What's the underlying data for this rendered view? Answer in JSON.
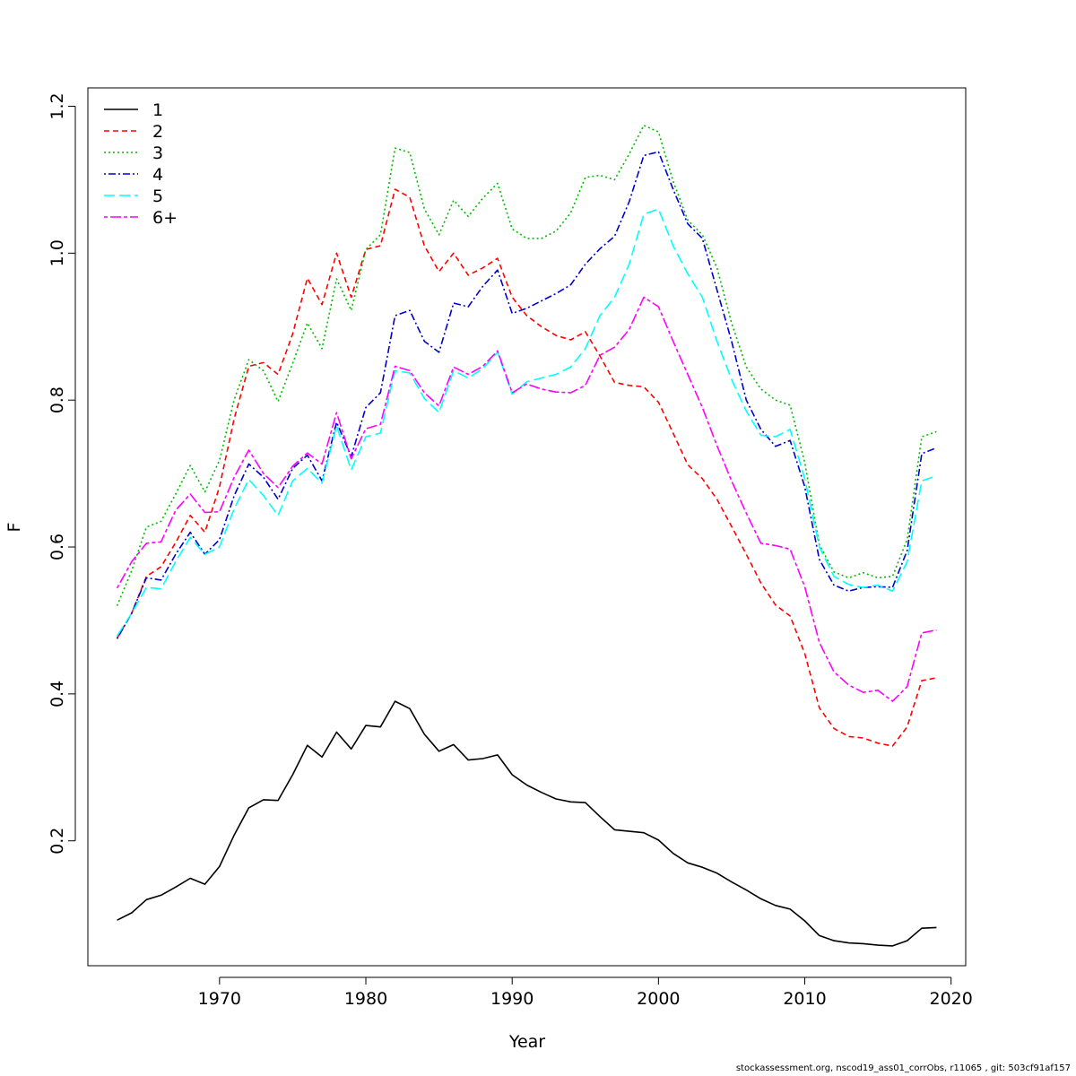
{
  "chart_data": {
    "type": "line",
    "xlabel": "Year",
    "ylabel": "F",
    "xlim": [
      1961,
      2021
    ],
    "ylim": [
      0.03,
      1.225
    ],
    "xticks": [
      1970,
      1980,
      1990,
      2000,
      2010,
      2020
    ],
    "yticks": [
      0.2,
      0.4,
      0.6,
      0.8,
      1.0,
      1.2
    ],
    "xtick_labels": [
      "1970",
      "1980",
      "1990",
      "2000",
      "2010",
      "2020"
    ],
    "ytick_labels": [
      "0.2",
      "0.4",
      "0.6",
      "0.8",
      "1.0",
      "1.2"
    ],
    "grid": false,
    "legend_position": "top-left",
    "x": [
      1963,
      1964,
      1965,
      1966,
      1967,
      1968,
      1969,
      1970,
      1971,
      1972,
      1973,
      1974,
      1975,
      1976,
      1977,
      1978,
      1979,
      1980,
      1981,
      1982,
      1983,
      1984,
      1985,
      1986,
      1987,
      1988,
      1989,
      1990,
      1991,
      1992,
      1993,
      1994,
      1995,
      1996,
      1997,
      1998,
      1999,
      2000,
      2001,
      2002,
      2003,
      2004,
      2005,
      2006,
      2007,
      2008,
      2009,
      2010,
      2011,
      2012,
      2013,
      2014,
      2015,
      2016,
      2017,
      2018,
      2019
    ],
    "series": [
      {
        "name": "1",
        "color": "#000000",
        "dash": "solid",
        "values": [
          0.092,
          0.102,
          0.12,
          0.126,
          0.137,
          0.149,
          0.141,
          0.165,
          0.208,
          0.245,
          0.256,
          0.255,
          0.29,
          0.33,
          0.314,
          0.348,
          0.325,
          0.357,
          0.355,
          0.39,
          0.38,
          0.345,
          0.322,
          0.331,
          0.31,
          0.312,
          0.317,
          0.29,
          0.276,
          0.266,
          0.257,
          0.253,
          0.252,
          0.233,
          0.215,
          0.213,
          0.211,
          0.201,
          0.183,
          0.17,
          0.164,
          0.156,
          0.144,
          0.133,
          0.121,
          0.112,
          0.107,
          0.091,
          0.071,
          0.064,
          0.061,
          0.06,
          0.058,
          0.057,
          0.064,
          0.081,
          0.082
        ]
      },
      {
        "name": "2",
        "color": "#ff0000",
        "dash": "dashed",
        "values": [
          0.476,
          0.51,
          0.56,
          0.573,
          0.606,
          0.643,
          0.62,
          0.682,
          0.775,
          0.846,
          0.851,
          0.835,
          0.89,
          0.966,
          0.93,
          1.0,
          0.94,
          1.005,
          1.01,
          1.087,
          1.076,
          1.01,
          0.975,
          1.0,
          0.97,
          0.98,
          0.993,
          0.94,
          0.915,
          0.9,
          0.888,
          0.882,
          0.893,
          0.86,
          0.824,
          0.82,
          0.818,
          0.797,
          0.755,
          0.712,
          0.693,
          0.665,
          0.628,
          0.59,
          0.551,
          0.521,
          0.506,
          0.455,
          0.381,
          0.353,
          0.342,
          0.34,
          0.333,
          0.329,
          0.355,
          0.418,
          0.422
        ]
      },
      {
        "name": "3",
        "color": "#00bb00",
        "dash": "dotted",
        "values": [
          0.52,
          0.568,
          0.627,
          0.635,
          0.672,
          0.711,
          0.675,
          0.718,
          0.801,
          0.855,
          0.84,
          0.798,
          0.85,
          0.905,
          0.87,
          0.965,
          0.922,
          1.005,
          1.025,
          1.143,
          1.137,
          1.06,
          1.025,
          1.072,
          1.05,
          1.075,
          1.095,
          1.033,
          1.02,
          1.02,
          1.03,
          1.055,
          1.103,
          1.106,
          1.1,
          1.135,
          1.174,
          1.165,
          1.098,
          1.045,
          1.025,
          0.98,
          0.905,
          0.845,
          0.815,
          0.8,
          0.793,
          0.715,
          0.603,
          0.566,
          0.558,
          0.565,
          0.558,
          0.56,
          0.61,
          0.75,
          0.757
        ]
      },
      {
        "name": "4",
        "color": "#0000cc",
        "dash": "dotdash",
        "values": [
          0.475,
          0.51,
          0.558,
          0.555,
          0.59,
          0.62,
          0.59,
          0.61,
          0.67,
          0.713,
          0.695,
          0.665,
          0.707,
          0.725,
          0.69,
          0.77,
          0.723,
          0.79,
          0.81,
          0.915,
          0.922,
          0.88,
          0.865,
          0.932,
          0.927,
          0.955,
          0.977,
          0.918,
          0.925,
          0.935,
          0.945,
          0.957,
          0.985,
          1.006,
          1.023,
          1.07,
          1.133,
          1.138,
          1.087,
          1.04,
          1.02,
          0.95,
          0.88,
          0.8,
          0.76,
          0.737,
          0.745,
          0.682,
          0.583,
          0.548,
          0.54,
          0.545,
          0.546,
          0.545,
          0.595,
          0.727,
          0.735
        ]
      },
      {
        "name": "5",
        "color": "#00ffff",
        "dash": "longdash",
        "values": [
          0.479,
          0.51,
          0.545,
          0.543,
          0.58,
          0.613,
          0.59,
          0.6,
          0.652,
          0.692,
          0.67,
          0.643,
          0.69,
          0.707,
          0.687,
          0.765,
          0.705,
          0.75,
          0.755,
          0.84,
          0.837,
          0.802,
          0.783,
          0.84,
          0.83,
          0.843,
          0.865,
          0.808,
          0.825,
          0.83,
          0.835,
          0.845,
          0.87,
          0.915,
          0.94,
          0.985,
          1.053,
          1.06,
          1.01,
          0.972,
          0.94,
          0.88,
          0.828,
          0.785,
          0.752,
          0.75,
          0.76,
          0.693,
          0.6,
          0.56,
          0.549,
          0.545,
          0.548,
          0.54,
          0.58,
          0.69,
          0.697
        ]
      },
      {
        "name": "6+",
        "color": "#ff00ff",
        "dash": "twodash",
        "values": [
          0.544,
          0.58,
          0.605,
          0.607,
          0.65,
          0.672,
          0.647,
          0.648,
          0.695,
          0.732,
          0.7,
          0.681,
          0.71,
          0.728,
          0.713,
          0.783,
          0.72,
          0.761,
          0.767,
          0.846,
          0.84,
          0.81,
          0.792,
          0.845,
          0.835,
          0.846,
          0.867,
          0.81,
          0.822,
          0.815,
          0.811,
          0.81,
          0.82,
          0.861,
          0.872,
          0.896,
          0.94,
          0.927,
          0.88,
          0.835,
          0.79,
          0.738,
          0.69,
          0.646,
          0.605,
          0.602,
          0.597,
          0.546,
          0.47,
          0.43,
          0.412,
          0.402,
          0.405,
          0.39,
          0.41,
          0.483,
          0.487
        ]
      }
    ]
  },
  "footer_text": "stockassessment.org, nscod19_ass01_corrObs, r11065 , git: 503cf91af157"
}
